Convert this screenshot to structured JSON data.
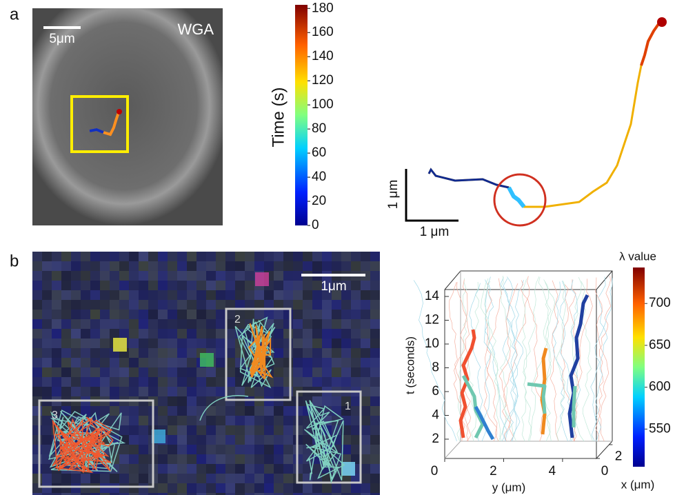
{
  "panel_a": {
    "label": "a",
    "scale_bar": "5μm",
    "stain": "WGA",
    "colorbar": {
      "title": "Time (s)",
      "lim": [
        0,
        183
      ],
      "ticks": [
        0,
        20,
        40,
        60,
        80,
        100,
        120,
        140,
        160,
        180
      ]
    },
    "scale_y": "1 μm",
    "scale_x": "1 μm"
  },
  "panel_b": {
    "label": "b",
    "scale_bar": "1μm",
    "boxes": [
      "3",
      "2",
      "1"
    ],
    "plot": {
      "t_label": "t (seconds)",
      "y_label": "y (μm)",
      "x_label": "x (μm)",
      "tlim": [
        2,
        14
      ],
      "tticks": [
        2,
        4,
        6,
        8,
        10,
        12,
        14
      ],
      "ylim": [
        0,
        5.5
      ],
      "yticks": [
        0,
        2,
        4
      ],
      "xlim": [
        0,
        2.5
      ],
      "xticks": [
        0,
        2
      ]
    },
    "colorbar": {
      "title": "λ value",
      "lim": [
        505,
        743
      ],
      "ticks": [
        550,
        600,
        650,
        700
      ]
    }
  }
}
